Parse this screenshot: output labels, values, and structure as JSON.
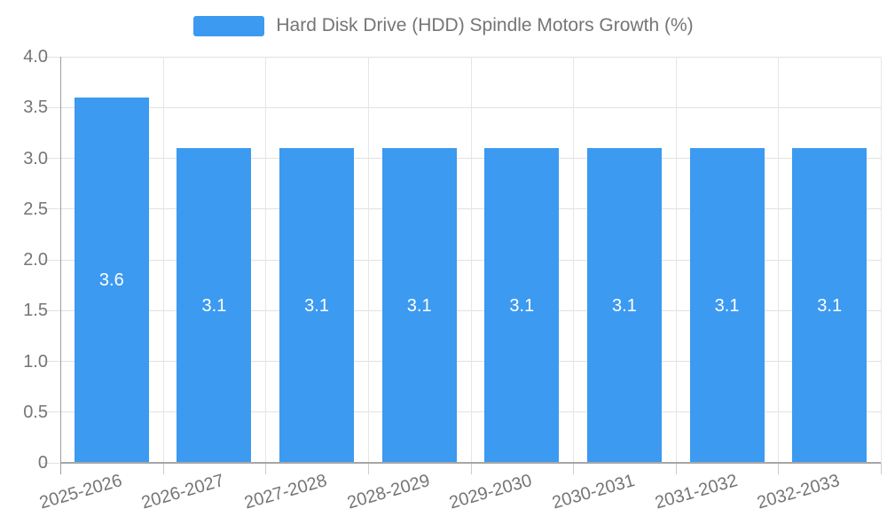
{
  "legend": {
    "label": "Hard Disk Drive (HDD) Spindle Motors Growth (%)",
    "swatch_color": "#3c9af0",
    "text_color": "#757575"
  },
  "chart_data": {
    "type": "bar",
    "title": "Hard Disk Drive (HDD) Spindle Motors Growth (%)",
    "categories": [
      "2025-2026",
      "2026-2027",
      "2027-2028",
      "2028-2029",
      "2029-2030",
      "2030-2031",
      "2031-2032",
      "2032-2033"
    ],
    "values": [
      3.6,
      3.1,
      3.1,
      3.1,
      3.1,
      3.1,
      3.1,
      3.1
    ],
    "value_labels": [
      "3.6",
      "3.1",
      "3.1",
      "3.1",
      "3.1",
      "3.1",
      "3.1",
      "3.1"
    ],
    "xlabel": "",
    "ylabel": "",
    "ylim": [
      0,
      4.0
    ],
    "ytick_step": 0.5,
    "ytick_labels": [
      "0",
      "0.5",
      "1.0",
      "1.5",
      "2.0",
      "2.5",
      "3.0",
      "3.5",
      "4.0"
    ],
    "grid": true,
    "legend_position": "top-center",
    "bar_color": "#3c9af0",
    "value_label_color": "#ffffff",
    "axis_line_color": "#9e9e9e",
    "gridline_color": "#e2e2e2",
    "tick_label_color": "#757575"
  }
}
